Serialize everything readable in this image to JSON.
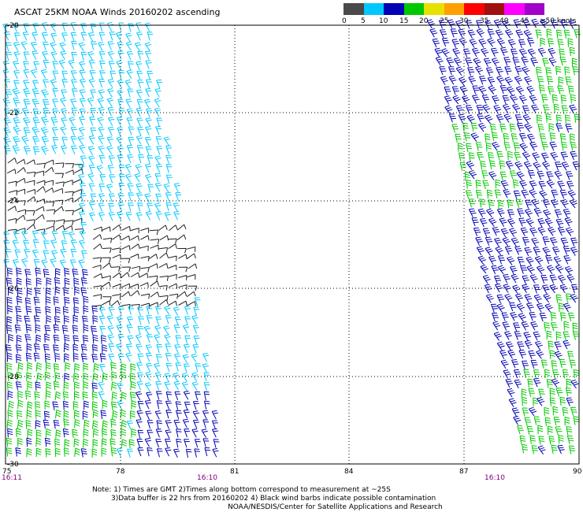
{
  "title": "ASCAT 25KM NOAA Winds 20160202 ascending",
  "legend": {
    "colors": [
      "#4a4a4a",
      "#00c8ff",
      "#0000b4",
      "#00c800",
      "#e8e000",
      "#ffa000",
      "#ff0000",
      "#a01010",
      "#ff00ff",
      "#a000c8"
    ],
    "ticks": [
      "0",
      "5",
      "10",
      "15",
      "20",
      "25",
      "30",
      "35",
      "40",
      "45",
      "≥50 knots"
    ]
  },
  "map": {
    "lat_labels": [
      "-20",
      "-22",
      "-24",
      "-26",
      "-28",
      "-30"
    ],
    "lon_labels": [
      "75",
      "78",
      "81",
      "84",
      "87",
      "90"
    ],
    "time_labels": [
      "16:11",
      "16:10",
      "16:10"
    ],
    "grid_color": "#000000"
  },
  "notes": {
    "line1": "Note: 1) Times are GMT 2)Times along bottom correspond to measurement at ~25S",
    "line2": "3)Data buffer is 22 hrs from 20160202 4) Black wind barbs indicate possible contamination",
    "line3": "NOAA/NESDIS/Center for Satellite Applications and Research"
  }
}
